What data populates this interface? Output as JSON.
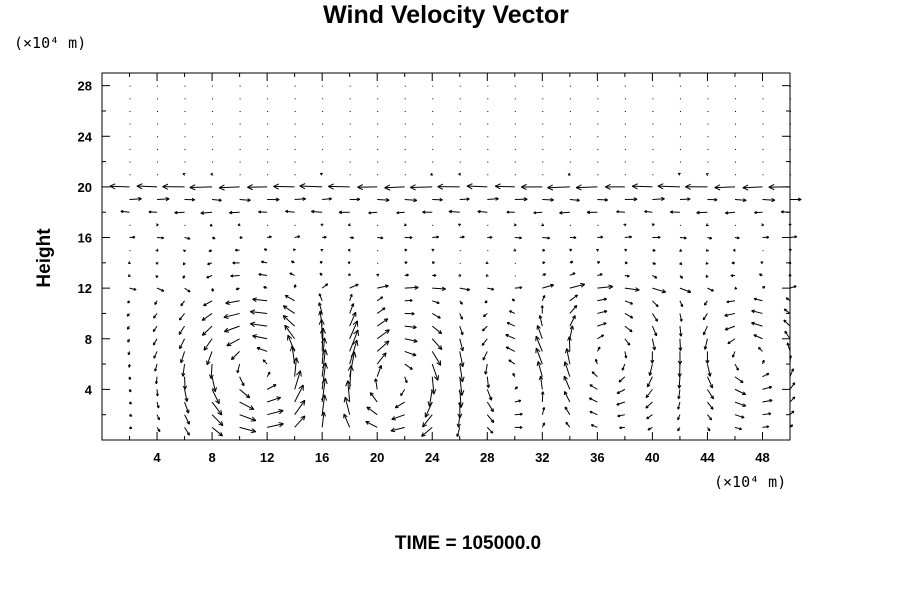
{
  "chart_data": {
    "type": "vector-field",
    "title": "Wind Velocity Vector",
    "ylabel": "Height",
    "xlabel": "",
    "x_unit": "(×10⁴ m)",
    "y_unit": "(×10⁴ m)",
    "xlim": [
      0,
      50
    ],
    "ylim": [
      0,
      29
    ],
    "x_ticks": [
      4,
      8,
      12,
      16,
      20,
      24,
      28,
      32,
      36,
      40,
      44,
      48
    ],
    "y_ticks": [
      4,
      8,
      12,
      16,
      20,
      24,
      28
    ],
    "x_minor_step": 2,
    "y_minor_step": 2,
    "grid": false,
    "time_label": "TIME = 105000.0",
    "grid_points": {
      "x_start": 0,
      "x_step": 2,
      "x_count": 26,
      "y_start": 0,
      "y_step": 1,
      "y_count": 29
    },
    "vector_scale": 0.07,
    "eddies": [
      {
        "cx": 11.5,
        "cy": 5.5,
        "r": 4.0,
        "strength": 28,
        "sense": "ccw"
      },
      {
        "cx": 21.0,
        "cy": 4.5,
        "r": 3.5,
        "strength": 26,
        "sense": "cw"
      },
      {
        "cx": 30.0,
        "cy": 5.0,
        "r": 3.0,
        "strength": 16,
        "sense": "ccw"
      },
      {
        "cx": 36.5,
        "cy": 6.5,
        "r": 3.5,
        "strength": 18,
        "sense": "cw"
      },
      {
        "cx": 47.0,
        "cy": 6.5,
        "r": 3.0,
        "strength": 18,
        "sense": "ccw"
      }
    ],
    "horizontal_jets": [
      {
        "y": 20,
        "u": -22,
        "width": 0.5
      },
      {
        "y": 19,
        "u": 12,
        "width": 0.5
      },
      {
        "y": 18,
        "u": -10,
        "width": 0.5
      },
      {
        "y": 16,
        "u": 6,
        "width": 0.6
      },
      {
        "y": 12,
        "u": 9,
        "width": 0.6
      }
    ],
    "colors": {
      "background": "#ffffff",
      "foreground": "#000000"
    }
  }
}
